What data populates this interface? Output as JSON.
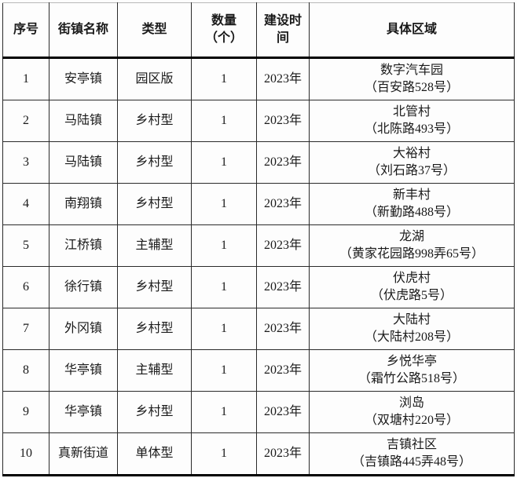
{
  "table": {
    "columns": [
      "序号",
      "街镇名称",
      "类型",
      "数量\n（个）",
      "建设时\n间",
      "具体区域"
    ],
    "rows": [
      {
        "index": "1",
        "town": "安亭镇",
        "type": "园区版",
        "quantity": "1",
        "time": "2023年",
        "area": "数字汽车园\n（百安路528号）"
      },
      {
        "index": "2",
        "town": "马陆镇",
        "type": "乡村型",
        "quantity": "1",
        "time": "2023年",
        "area": "北管村\n（北陈路493号）"
      },
      {
        "index": "3",
        "town": "马陆镇",
        "type": "乡村型",
        "quantity": "1",
        "time": "2023年",
        "area": "大裕村\n（刘石路37号）"
      },
      {
        "index": "4",
        "town": "南翔镇",
        "type": "乡村型",
        "quantity": "1",
        "time": "2023年",
        "area": "新丰村\n（新勤路488号）"
      },
      {
        "index": "5",
        "town": "江桥镇",
        "type": "主辅型",
        "quantity": "1",
        "time": "2023年",
        "area": "龙湖\n（黄家花园路998弄65号）"
      },
      {
        "index": "6",
        "town": "徐行镇",
        "type": "乡村型",
        "quantity": "1",
        "time": "2023年",
        "area": "伏虎村\n（伏虎路5号）"
      },
      {
        "index": "7",
        "town": "外冈镇",
        "type": "乡村型",
        "quantity": "1",
        "time": "2023年",
        "area": "大陆村\n（大陆村208号）"
      },
      {
        "index": "8",
        "town": "华亭镇",
        "type": "主辅型",
        "quantity": "1",
        "time": "2023年",
        "area": "乡悦华亭\n（霜竹公路518号）"
      },
      {
        "index": "9",
        "town": "华亭镇",
        "type": "乡村型",
        "quantity": "1",
        "time": "2023年",
        "area": "浏岛\n（双塘村220号）"
      },
      {
        "index": "10",
        "town": "真新街道",
        "type": "单体型",
        "quantity": "1",
        "time": "2023年",
        "area": "吉镇社区\n（吉镇路445弄48号）"
      }
    ],
    "colors": {
      "border": "#2a2a2a",
      "heavy_border": "#000000",
      "text": "#1a1a1a",
      "background": "#fdfdfd"
    }
  }
}
